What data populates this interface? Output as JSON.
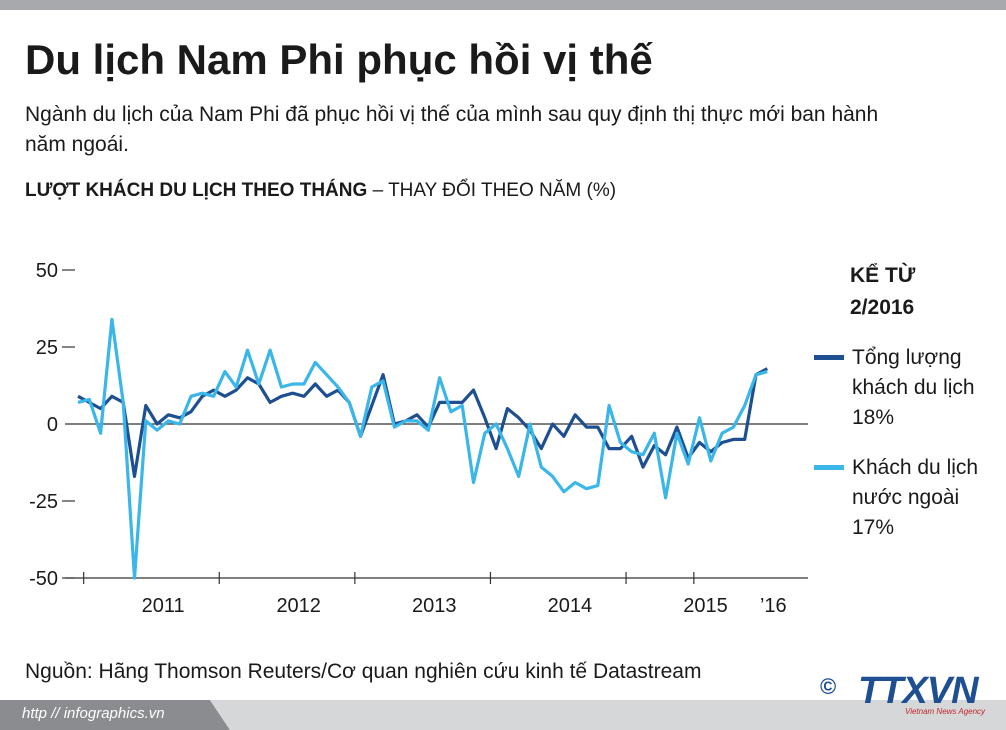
{
  "header": {
    "title": "Du lịch Nam Phi phục hồi vị thế",
    "subtitle": "Ngành du lịch của Nam Phi đã phục hồi vị thế của mình sau quy định thị thực mới ban hành năm ngoái."
  },
  "chart_data": {
    "type": "line",
    "title": "LƯỢT KHÁCH DU LỊCH THEO THÁNG",
    "subtitle": "– THAY ĐỔI THEO NĂM (%)",
    "legend_title": "KỂ TỪ 2/2016",
    "categories": [
      null,
      null,
      null,
      null,
      null,
      null,
      null,
      "2011",
      null,
      null,
      null,
      null,
      null,
      null,
      null,
      null,
      null,
      null,
      null,
      "2012",
      null,
      null,
      null,
      null,
      null,
      null,
      null,
      null,
      null,
      null,
      null,
      "2013",
      null,
      null,
      null,
      null,
      null,
      null,
      null,
      null,
      null,
      null,
      null,
      "2014",
      null,
      null,
      null,
      null,
      null,
      null,
      null,
      null,
      null,
      null,
      null,
      "2015",
      null,
      null,
      null,
      null,
      null,
      "’16"
    ],
    "series": [
      {
        "name": "Tổng lượng khách du lịch",
        "color": "#1d4f91",
        "values": [
          9,
          7,
          5,
          9,
          7,
          -17,
          6,
          0,
          3,
          2,
          4,
          9,
          11,
          9,
          11,
          15,
          13,
          7,
          9,
          10,
          9,
          13,
          9,
          11,
          7,
          -4,
          6,
          16,
          0,
          1,
          3,
          -1,
          7,
          7,
          7,
          11,
          2,
          -8,
          5,
          2,
          -2,
          -8,
          0,
          -4,
          3,
          -1,
          -1,
          -8,
          -8,
          -4,
          -14,
          -7,
          -10,
          -1,
          -11,
          -6,
          -9,
          -6,
          -5,
          -5,
          16,
          18
        ],
        "value_labels": [
          null,
          null,
          null,
          null,
          null,
          null,
          null,
          null,
          null,
          null,
          null,
          null,
          null,
          null,
          null,
          null,
          null,
          null,
          null,
          null,
          null,
          null,
          null,
          null,
          null,
          null,
          null,
          null,
          null,
          null,
          null,
          null,
          null,
          null,
          null,
          null,
          null,
          null,
          null,
          null,
          null,
          null,
          null,
          null,
          null,
          null,
          null,
          null,
          null,
          null,
          null,
          null,
          null,
          null,
          null,
          null,
          null,
          null,
          null,
          null,
          null,
          "18%"
        ]
      },
      {
        "name": "Khách du lịch nước ngoài",
        "color": "#3ab6e8",
        "values": [
          7,
          8,
          -3,
          34,
          7,
          -50,
          1,
          -2,
          1,
          0,
          9,
          10,
          9,
          17,
          12,
          24,
          13,
          24,
          12,
          13,
          13,
          20,
          16,
          12,
          7,
          -4,
          12,
          14,
          -1,
          1,
          1,
          -2,
          15,
          4,
          6,
          -19,
          -3,
          0,
          -8,
          -17,
          0,
          -14,
          -17,
          -22,
          -19,
          -21,
          -20,
          6,
          -6,
          -9,
          -10,
          -3,
          -24,
          -3,
          -13,
          2,
          -12,
          -3,
          -1,
          6,
          16,
          17
        ],
        "value_labels": [
          null,
          null,
          null,
          null,
          null,
          null,
          null,
          null,
          null,
          null,
          null,
          null,
          null,
          null,
          null,
          null,
          null,
          null,
          null,
          null,
          null,
          null,
          null,
          null,
          null,
          null,
          null,
          null,
          null,
          null,
          null,
          null,
          null,
          null,
          null,
          null,
          null,
          null,
          null,
          null,
          null,
          null,
          null,
          null,
          null,
          null,
          null,
          null,
          null,
          null,
          null,
          null,
          null,
          null,
          null,
          null,
          null,
          null,
          null,
          null,
          null,
          "17%"
        ]
      }
    ],
    "ylim": [
      -50,
      50
    ],
    "yticks": [
      -50,
      -25,
      0,
      25,
      50
    ]
  },
  "footer": {
    "source": "Nguồn: Hãng Thomson Reuters/Cơ quan nghiên cứu kinh tế Datastream",
    "url": "http // infographics.vn",
    "logo": "TTXVN",
    "logo_sub": "Vietnam News Agency"
  }
}
